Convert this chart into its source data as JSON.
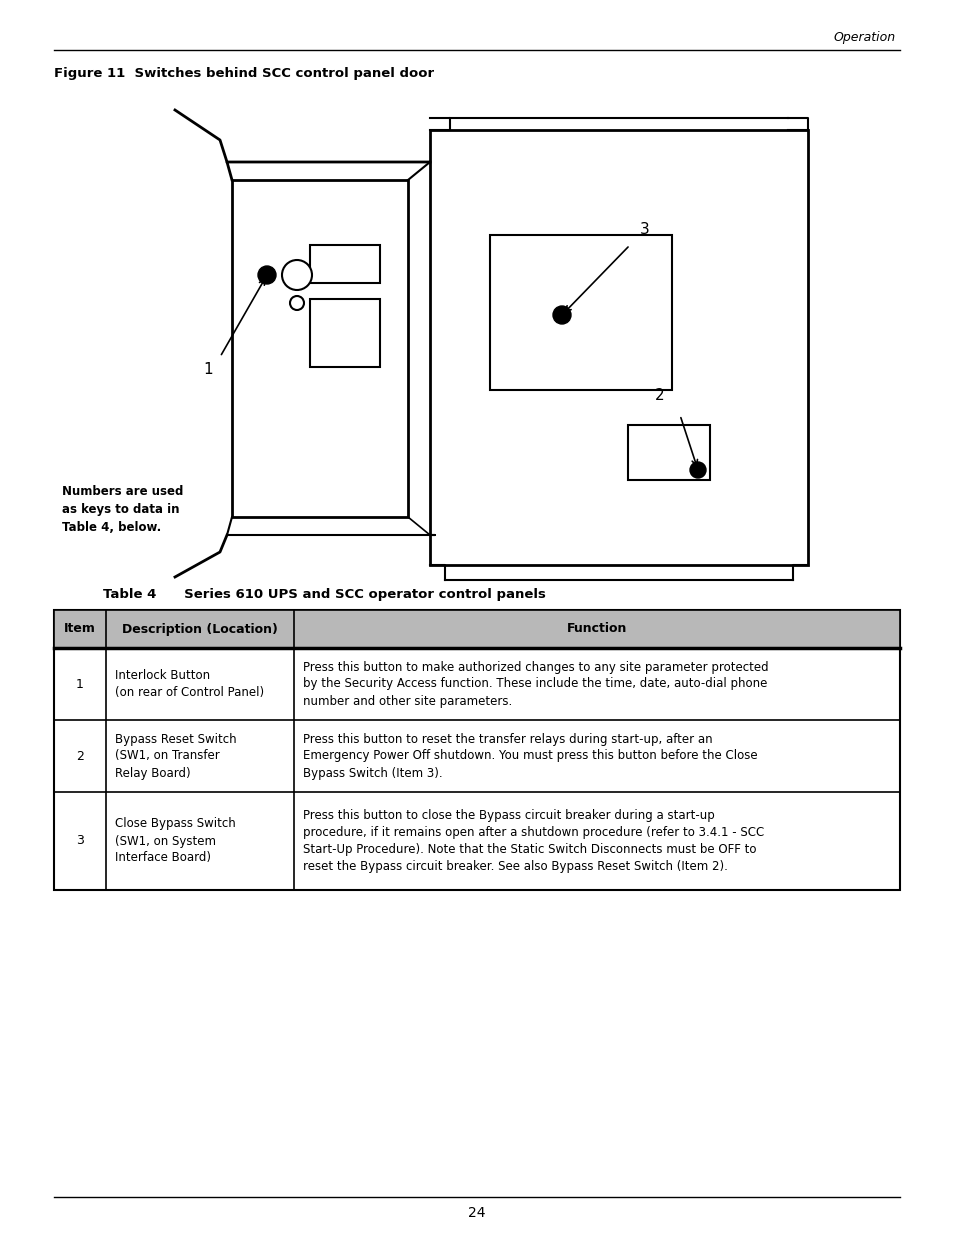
{
  "page_header_text": "Operation",
  "figure_caption": "Figure 11  Switches behind SCC control panel door",
  "note_text": "Numbers are used\nas keys to data in\nTable 4, below.",
  "table_caption": "Table 4      Series 610 UPS and SCC operator control panels",
  "table_headers": [
    "Item",
    "Description (Location)",
    "Function"
  ],
  "table_rows": [
    {
      "item": "1",
      "description": "Interlock Button\n(on rear of Control Panel)",
      "function": "Press this button to make authorized changes to any site parameter protected\nby the Security Access function. These include the time, date, auto-dial phone\nnumber and other site parameters.",
      "bold_function": false
    },
    {
      "item": "2",
      "description": "Bypass Reset Switch\n(SW1, on Transfer\nRelay Board)",
      "function": "Press this button to reset the transfer relays during start-up, after an\nEmergency Power Off shutdown. You must press this button before the Close\nBypass Switch (Item 3).",
      "bold_function": false
    },
    {
      "item": "3",
      "description": "Close Bypass Switch\n(SW1, on System\nInterface Board)",
      "function": "Press this button to close the Bypass circuit breaker during a start-up\nprocedure, if it remains open after a shutdown procedure (refer to 3.4.1 - SCC\nStart-Up Procedure). Note that the Static Switch Disconnects must be OFF to\nreset the Bypass circuit breaker. See also Bypass Reset Switch (Item 2).",
      "bold_function": true,
      "bold_start": "3.4.1 - SCC\nStart-Up Procedure"
    }
  ],
  "page_number": "24",
  "bg_color": "#ffffff",
  "text_color": "#000000",
  "line_color": "#000000"
}
